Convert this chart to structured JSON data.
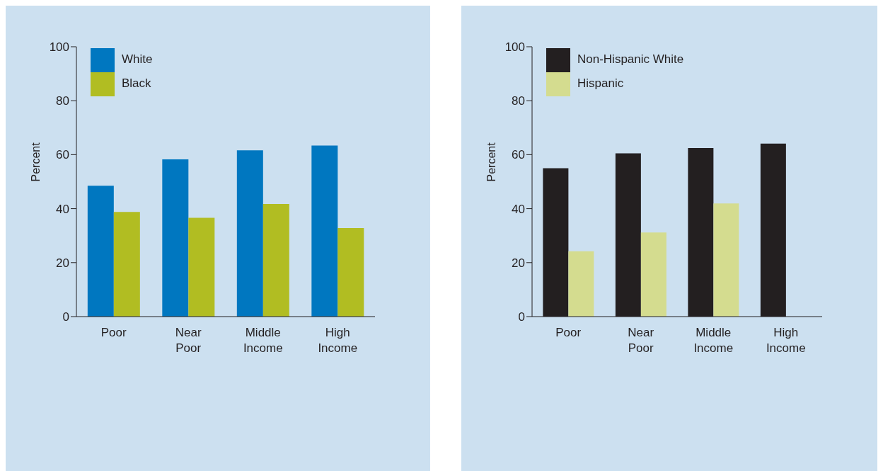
{
  "chart_data": [
    {
      "type": "bar",
      "ylabel": "Percent",
      "categories": [
        "Poor",
        "Near Poor",
        "Middle Income",
        "High Income"
      ],
      "series": [
        {
          "name": "White",
          "color": "#0077c0",
          "values": [
            48.5,
            58.3,
            61.6,
            63.4
          ]
        },
        {
          "name": "Black",
          "color": "#b1bd22",
          "values": [
            38.8,
            36.6,
            41.7,
            32.8
          ]
        }
      ],
      "ylim": [
        0,
        100
      ],
      "yticks": [
        0,
        20,
        40,
        60,
        80,
        100
      ],
      "grid": false,
      "legend": "top left"
    },
    {
      "type": "bar",
      "ylabel": "Percent",
      "categories": [
        "Poor",
        "Near Poor",
        "Middle Income",
        "High Income"
      ],
      "series": [
        {
          "name": "Non-Hispanic White",
          "color": "#231f20",
          "values": [
            55.0,
            60.5,
            62.5,
            64.1
          ]
        },
        {
          "name": "Hispanic",
          "color": "#d4dc8f",
          "values": [
            24.2,
            31.2,
            41.9,
            null
          ]
        }
      ],
      "ylim": [
        0,
        100
      ],
      "yticks": [
        0,
        20,
        40,
        60,
        80,
        100
      ],
      "grid": false,
      "legend": "top left"
    }
  ]
}
